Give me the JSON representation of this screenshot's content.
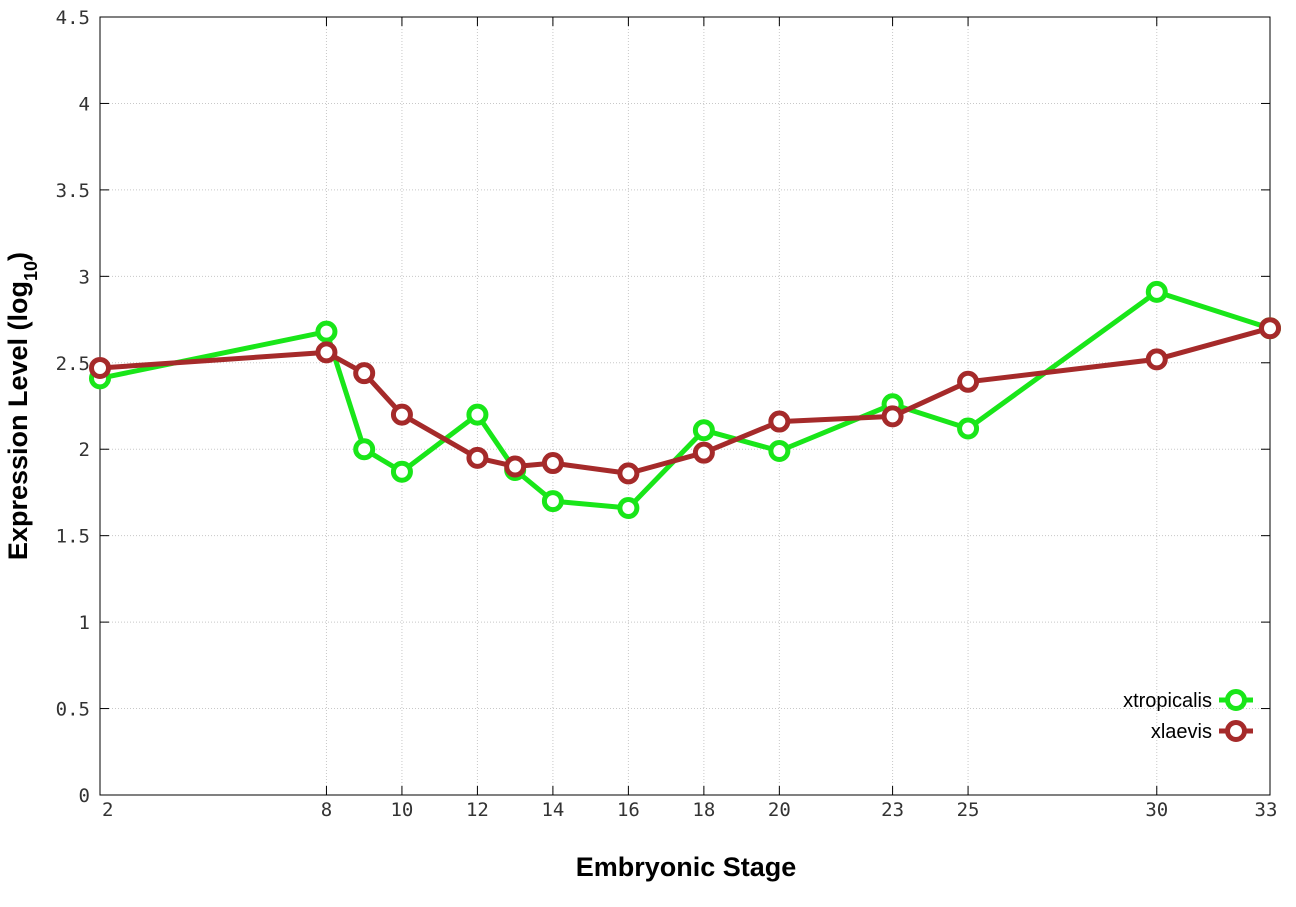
{
  "chart_data": {
    "type": "line",
    "title": "",
    "xlabel": "Embryonic Stage",
    "ylabel_main": "Expression Level (log",
    "ylabel_sub": "10",
    "ylabel_close": ")",
    "x_ticks": [
      2,
      8,
      10,
      12,
      14,
      16,
      18,
      20,
      23,
      25,
      30,
      33
    ],
    "x_tick_labels": [
      "2",
      "8",
      "10",
      "12",
      "14",
      "16",
      "18",
      "20",
      "23",
      "25",
      "30",
      "33"
    ],
    "y_ticks": [
      0,
      0.5,
      1,
      1.5,
      2,
      2.5,
      3,
      3.5,
      4,
      4.5
    ],
    "y_tick_labels": [
      "0",
      "0.5",
      "1",
      "1.5",
      "2",
      "2.5",
      "3",
      "3.5",
      "4",
      "4.5"
    ],
    "xlim": [
      2,
      33
    ],
    "ylim": [
      0,
      4.5
    ],
    "grid": true,
    "legend_position": "bottom-right",
    "x": [
      2,
      8,
      9,
      10,
      12,
      13,
      14,
      16,
      18,
      20,
      23,
      25,
      30,
      33
    ],
    "series": [
      {
        "name": "xtropicalis",
        "color": "#19e619",
        "values": [
          2.41,
          2.68,
          2.0,
          1.87,
          2.2,
          1.88,
          1.7,
          1.66,
          2.11,
          1.99,
          2.26,
          2.12,
          2.91,
          2.7
        ]
      },
      {
        "name": "xlaevis",
        "color": "#a52a2a",
        "values": [
          2.47,
          2.56,
          2.44,
          2.2,
          1.95,
          1.9,
          1.92,
          1.86,
          1.98,
          2.16,
          2.19,
          2.39,
          2.52,
          2.7
        ]
      }
    ]
  }
}
